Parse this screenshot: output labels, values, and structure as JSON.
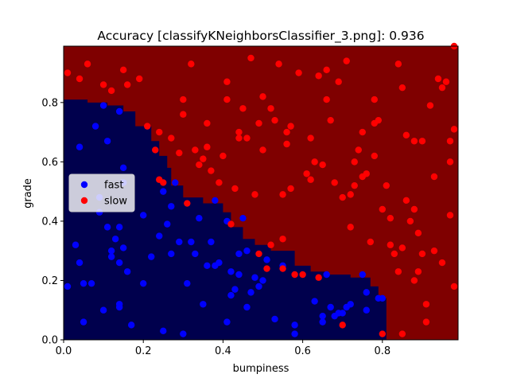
{
  "chart_data": {
    "type": "scatter",
    "title": "Accuracy [classifyKNeighborsClassifier_3.png]: 0.936",
    "xlabel": "bumpiness",
    "ylabel": "grade",
    "xlim": [
      0.0,
      0.99
    ],
    "ylim": [
      0.0,
      0.99
    ],
    "xticks": [
      "0.0",
      "0.2",
      "0.4",
      "0.6",
      "0.8"
    ],
    "xtick_values": [
      0.0,
      0.2,
      0.4,
      0.6,
      0.8
    ],
    "yticks": [
      "0.0",
      "0.2",
      "0.4",
      "0.6",
      "0.8"
    ],
    "ytick_values": [
      0.0,
      0.2,
      0.4,
      0.6,
      0.8
    ],
    "legend_position": "center-left",
    "decision_regions": {
      "fast_color": "#00004d",
      "slow_color": "#7f0000",
      "fast_region_boundary": [
        [
          0.0,
          0.81
        ],
        [
          0.06,
          0.81
        ],
        [
          0.06,
          0.8
        ],
        [
          0.11,
          0.8
        ],
        [
          0.11,
          0.79
        ],
        [
          0.15,
          0.79
        ],
        [
          0.15,
          0.77
        ],
        [
          0.18,
          0.77
        ],
        [
          0.18,
          0.72
        ],
        [
          0.22,
          0.72
        ],
        [
          0.22,
          0.67
        ],
        [
          0.24,
          0.67
        ],
        [
          0.24,
          0.62
        ],
        [
          0.26,
          0.62
        ],
        [
          0.26,
          0.58
        ],
        [
          0.27,
          0.58
        ],
        [
          0.27,
          0.52
        ],
        [
          0.3,
          0.52
        ],
        [
          0.3,
          0.48
        ],
        [
          0.35,
          0.48
        ],
        [
          0.35,
          0.46
        ],
        [
          0.4,
          0.46
        ],
        [
          0.4,
          0.43
        ],
        [
          0.42,
          0.43
        ],
        [
          0.42,
          0.38
        ],
        [
          0.45,
          0.38
        ],
        [
          0.45,
          0.34
        ],
        [
          0.48,
          0.34
        ],
        [
          0.48,
          0.32
        ],
        [
          0.52,
          0.32
        ],
        [
          0.52,
          0.3
        ],
        [
          0.58,
          0.3
        ],
        [
          0.58,
          0.25
        ],
        [
          0.62,
          0.25
        ],
        [
          0.62,
          0.23
        ],
        [
          0.66,
          0.23
        ],
        [
          0.66,
          0.22
        ],
        [
          0.72,
          0.22
        ],
        [
          0.72,
          0.21
        ],
        [
          0.77,
          0.21
        ],
        [
          0.77,
          0.18
        ],
        [
          0.79,
          0.18
        ],
        [
          0.79,
          0.14
        ],
        [
          0.81,
          0.14
        ],
        [
          0.81,
          0.0
        ],
        [
          0.0,
          0.0
        ]
      ]
    },
    "series": [
      {
        "name": "fast",
        "color": "#0000ff",
        "points": [
          [
            0.01,
            0.18
          ],
          [
            0.03,
            0.32
          ],
          [
            0.04,
            0.26
          ],
          [
            0.04,
            0.65
          ],
          [
            0.05,
            0.19
          ],
          [
            0.05,
            0.06
          ],
          [
            0.07,
            0.19
          ],
          [
            0.08,
            0.72
          ],
          [
            0.09,
            0.48
          ],
          [
            0.09,
            0.43
          ],
          [
            0.1,
            0.79
          ],
          [
            0.1,
            0.1
          ],
          [
            0.11,
            0.67
          ],
          [
            0.11,
            0.38
          ],
          [
            0.12,
            0.3
          ],
          [
            0.12,
            0.28
          ],
          [
            0.13,
            0.34
          ],
          [
            0.14,
            0.12
          ],
          [
            0.14,
            0.38
          ],
          [
            0.14,
            0.26
          ],
          [
            0.14,
            0.11
          ],
          [
            0.14,
            0.77
          ],
          [
            0.15,
            0.53
          ],
          [
            0.15,
            0.58
          ],
          [
            0.15,
            0.31
          ],
          [
            0.16,
            0.23
          ],
          [
            0.17,
            0.05
          ],
          [
            0.2,
            0.42
          ],
          [
            0.2,
            0.19
          ],
          [
            0.22,
            0.28
          ],
          [
            0.24,
            0.35
          ],
          [
            0.25,
            0.03
          ],
          [
            0.25,
            0.5
          ],
          [
            0.26,
            0.39
          ],
          [
            0.27,
            0.29
          ],
          [
            0.27,
            0.45
          ],
          [
            0.28,
            0.53
          ],
          [
            0.29,
            0.33
          ],
          [
            0.3,
            0.02
          ],
          [
            0.31,
            0.19
          ],
          [
            0.32,
            0.33
          ],
          [
            0.33,
            0.29
          ],
          [
            0.34,
            0.41
          ],
          [
            0.35,
            0.12
          ],
          [
            0.36,
            0.25
          ],
          [
            0.37,
            0.33
          ],
          [
            0.38,
            0.25
          ],
          [
            0.38,
            0.47
          ],
          [
            0.39,
            0.26
          ],
          [
            0.41,
            0.06
          ],
          [
            0.41,
            0.4
          ],
          [
            0.42,
            0.23
          ],
          [
            0.42,
            0.15
          ],
          [
            0.43,
            0.17
          ],
          [
            0.44,
            0.29
          ],
          [
            0.44,
            0.22
          ],
          [
            0.45,
            0.41
          ],
          [
            0.46,
            0.3
          ],
          [
            0.46,
            0.11
          ],
          [
            0.47,
            0.16
          ],
          [
            0.48,
            0.21
          ],
          [
            0.49,
            0.18
          ],
          [
            0.5,
            0.2
          ],
          [
            0.51,
            0.27
          ],
          [
            0.53,
            0.07
          ],
          [
            0.55,
            0.25
          ],
          [
            0.58,
            0.05
          ],
          [
            0.58,
            0.02
          ],
          [
            0.63,
            0.13
          ],
          [
            0.65,
            0.08
          ],
          [
            0.65,
            0.06
          ],
          [
            0.66,
            0.22
          ],
          [
            0.67,
            0.11
          ],
          [
            0.68,
            0.08
          ],
          [
            0.69,
            0.09
          ],
          [
            0.7,
            0.09
          ],
          [
            0.71,
            0.11
          ],
          [
            0.72,
            0.12
          ],
          [
            0.75,
            0.22
          ],
          [
            0.76,
            0.16
          ],
          [
            0.76,
            0.1
          ],
          [
            0.79,
            0.14
          ],
          [
            0.8,
            0.14
          ]
        ]
      },
      {
        "name": "slow",
        "color": "#ff0000",
        "points": [
          [
            0.01,
            0.9
          ],
          [
            0.04,
            0.88
          ],
          [
            0.06,
            0.93
          ],
          [
            0.1,
            0.86
          ],
          [
            0.12,
            0.84
          ],
          [
            0.15,
            0.91
          ],
          [
            0.16,
            0.86
          ],
          [
            0.19,
            0.88
          ],
          [
            0.21,
            0.72
          ],
          [
            0.23,
            0.64
          ],
          [
            0.24,
            0.7
          ],
          [
            0.24,
            0.54
          ],
          [
            0.25,
            0.53
          ],
          [
            0.27,
            0.68
          ],
          [
            0.29,
            0.63
          ],
          [
            0.3,
            0.76
          ],
          [
            0.3,
            0.81
          ],
          [
            0.31,
            0.46
          ],
          [
            0.32,
            0.93
          ],
          [
            0.33,
            0.64
          ],
          [
            0.34,
            0.59
          ],
          [
            0.35,
            0.61
          ],
          [
            0.36,
            0.73
          ],
          [
            0.36,
            0.65
          ],
          [
            0.37,
            0.57
          ],
          [
            0.39,
            0.53
          ],
          [
            0.4,
            0.62
          ],
          [
            0.41,
            0.87
          ],
          [
            0.41,
            0.81
          ],
          [
            0.42,
            0.39
          ],
          [
            0.43,
            0.51
          ],
          [
            0.44,
            0.68
          ],
          [
            0.44,
            0.7
          ],
          [
            0.45,
            0.78
          ],
          [
            0.46,
            0.68
          ],
          [
            0.47,
            0.95
          ],
          [
            0.48,
            0.49
          ],
          [
            0.49,
            0.29
          ],
          [
            0.49,
            0.73
          ],
          [
            0.5,
            0.82
          ],
          [
            0.5,
            0.64
          ],
          [
            0.51,
            0.24
          ],
          [
            0.52,
            0.32
          ],
          [
            0.52,
            0.78
          ],
          [
            0.53,
            0.74
          ],
          [
            0.54,
            0.93
          ],
          [
            0.55,
            0.49
          ],
          [
            0.55,
            0.34
          ],
          [
            0.55,
            0.24
          ],
          [
            0.56,
            0.66
          ],
          [
            0.56,
            0.7
          ],
          [
            0.57,
            0.72
          ],
          [
            0.57,
            0.51
          ],
          [
            0.58,
            0.22
          ],
          [
            0.59,
            0.9
          ],
          [
            0.6,
            0.22
          ],
          [
            0.61,
            0.56
          ],
          [
            0.62,
            0.54
          ],
          [
            0.62,
            0.68
          ],
          [
            0.63,
            0.6
          ],
          [
            0.64,
            0.89
          ],
          [
            0.64,
            0.21
          ],
          [
            0.65,
            0.59
          ],
          [
            0.66,
            0.91
          ],
          [
            0.66,
            0.81
          ],
          [
            0.67,
            0.74
          ],
          [
            0.68,
            0.53
          ],
          [
            0.69,
            0.87
          ],
          [
            0.7,
            0.48
          ],
          [
            0.71,
            0.94
          ],
          [
            0.72,
            0.49
          ],
          [
            0.72,
            0.38
          ],
          [
            0.73,
            0.52
          ],
          [
            0.74,
            0.64
          ],
          [
            0.75,
            0.7
          ],
          [
            0.76,
            0.56
          ],
          [
            0.77,
            0.33
          ],
          [
            0.78,
            0.73
          ],
          [
            0.78,
            0.81
          ],
          [
            0.79,
            0.74
          ],
          [
            0.8,
            0.44
          ],
          [
            0.81,
            0.52
          ],
          [
            0.82,
            0.32
          ],
          [
            0.82,
            0.41
          ],
          [
            0.83,
            0.29
          ],
          [
            0.84,
            0.93
          ],
          [
            0.84,
            0.23
          ],
          [
            0.85,
            0.31
          ],
          [
            0.85,
            0.85
          ],
          [
            0.86,
            0.69
          ],
          [
            0.87,
            0.4
          ],
          [
            0.88,
            0.67
          ],
          [
            0.88,
            0.44
          ],
          [
            0.89,
            0.36
          ],
          [
            0.9,
            0.29
          ],
          [
            0.9,
            0.67
          ],
          [
            0.91,
            0.12
          ],
          [
            0.91,
            0.06
          ],
          [
            0.92,
            0.79
          ],
          [
            0.93,
            0.55
          ],
          [
            0.93,
            0.3
          ],
          [
            0.94,
            0.88
          ],
          [
            0.95,
            0.85
          ],
          [
            0.95,
            0.26
          ],
          [
            0.96,
            0.87
          ],
          [
            0.97,
            0.67
          ],
          [
            0.97,
            0.6
          ],
          [
            0.97,
            0.42
          ],
          [
            0.98,
            0.71
          ],
          [
            0.98,
            0.18
          ],
          [
            0.98,
            0.99
          ],
          [
            0.86,
            0.47
          ],
          [
            0.88,
            0.2
          ],
          [
            0.89,
            0.23
          ],
          [
            0.8,
            0.02
          ],
          [
            0.75,
            0.55
          ],
          [
            0.85,
            0.02
          ],
          [
            0.7,
            0.05
          ],
          [
            0.73,
            0.6
          ],
          [
            0.78,
            0.62
          ]
        ]
      }
    ]
  }
}
